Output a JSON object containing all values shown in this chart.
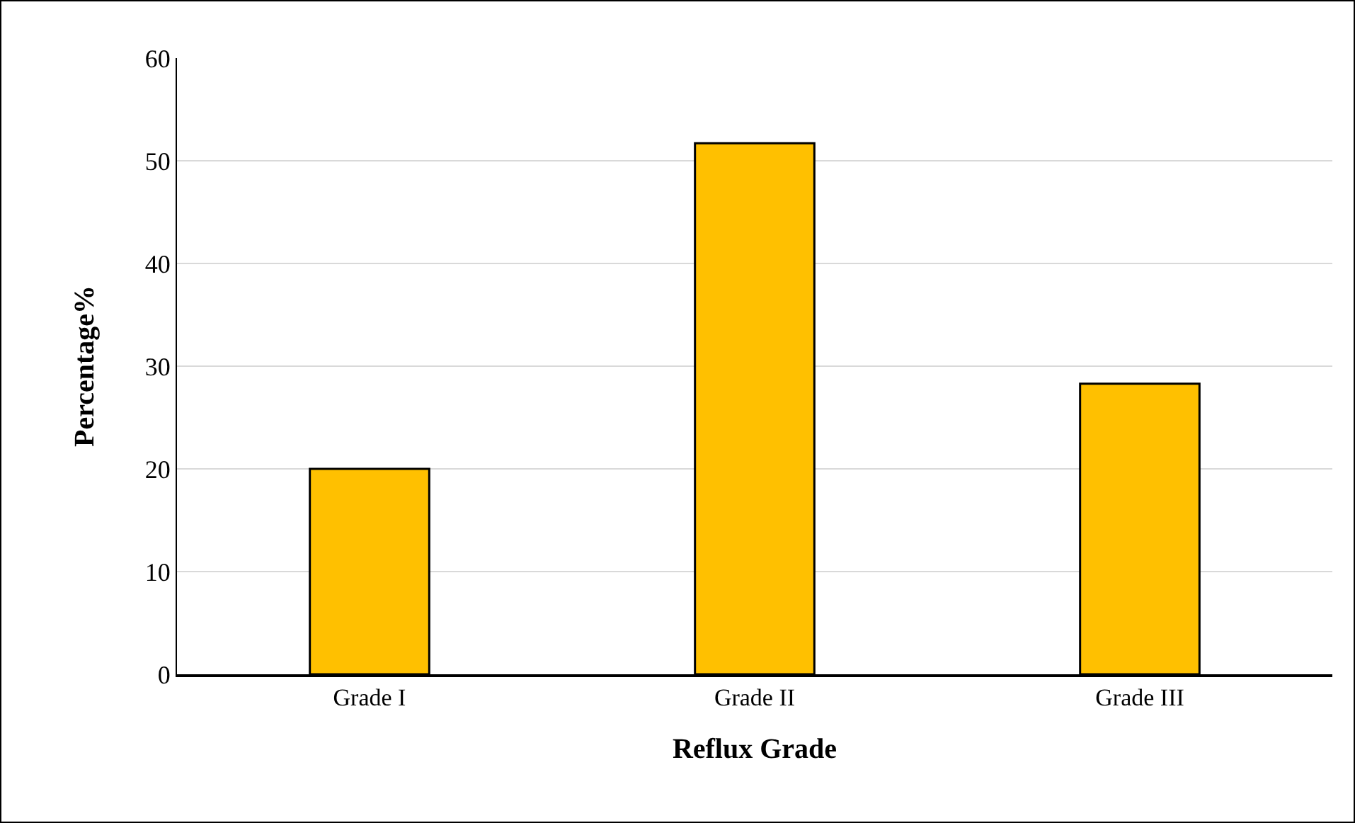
{
  "chart_data": {
    "type": "bar",
    "xlabel": "Reflux Grade",
    "ylabel": "Percentage%",
    "categories": [
      "Grade I",
      "Grade II",
      "Grade III"
    ],
    "values": [
      20,
      51.7,
      28.3
    ],
    "color": "#ffc000",
    "ylim": [
      0,
      60
    ],
    "yticks": [
      0,
      10,
      20,
      30,
      40,
      50,
      60
    ],
    "grid": "y",
    "legend": false
  }
}
